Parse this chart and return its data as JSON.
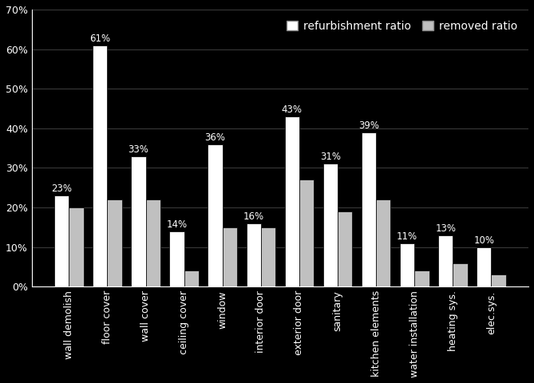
{
  "categories": [
    "wall demolish",
    "floor cover",
    "wall cover",
    "ceiling cover",
    "window",
    "interior door",
    "exterior door",
    "sanitary",
    "kitchen elements",
    "water installation",
    "heating sys.",
    "elec.sys."
  ],
  "refurbishment_ratio": [
    0.23,
    0.61,
    0.33,
    0.14,
    0.36,
    0.16,
    0.43,
    0.31,
    0.39,
    0.11,
    0.13,
    0.1
  ],
  "removed_ratio": [
    0.2,
    0.22,
    0.22,
    0.04,
    0.15,
    0.15,
    0.27,
    0.19,
    0.22,
    0.04,
    0.06,
    0.03
  ],
  "refurb_labels": [
    "23%",
    "61%",
    "33%",
    "14%",
    "36%",
    "16%",
    "43%",
    "31%",
    "39%",
    "11%",
    "13%",
    "10%"
  ],
  "bar_color_refurb": "#ffffff",
  "bar_color_removed": "#c0c0c0",
  "bar_edgecolor": "#000000",
  "background_color": "#000000",
  "text_color": "#ffffff",
  "grid_color": "#555555",
  "ylim": [
    0,
    0.7
  ],
  "yticks": [
    0.0,
    0.1,
    0.2,
    0.3,
    0.4,
    0.5,
    0.6,
    0.7
  ],
  "ytick_labels": [
    "0%",
    "10%",
    "20%",
    "30%",
    "40%",
    "50%",
    "60%",
    "70%"
  ],
  "legend_refurb": "refurbishment ratio",
  "legend_removed": "removed ratio",
  "bar_width": 0.38,
  "label_fontsize": 9,
  "tick_fontsize": 9,
  "legend_fontsize": 10,
  "annotation_fontsize": 8.5
}
